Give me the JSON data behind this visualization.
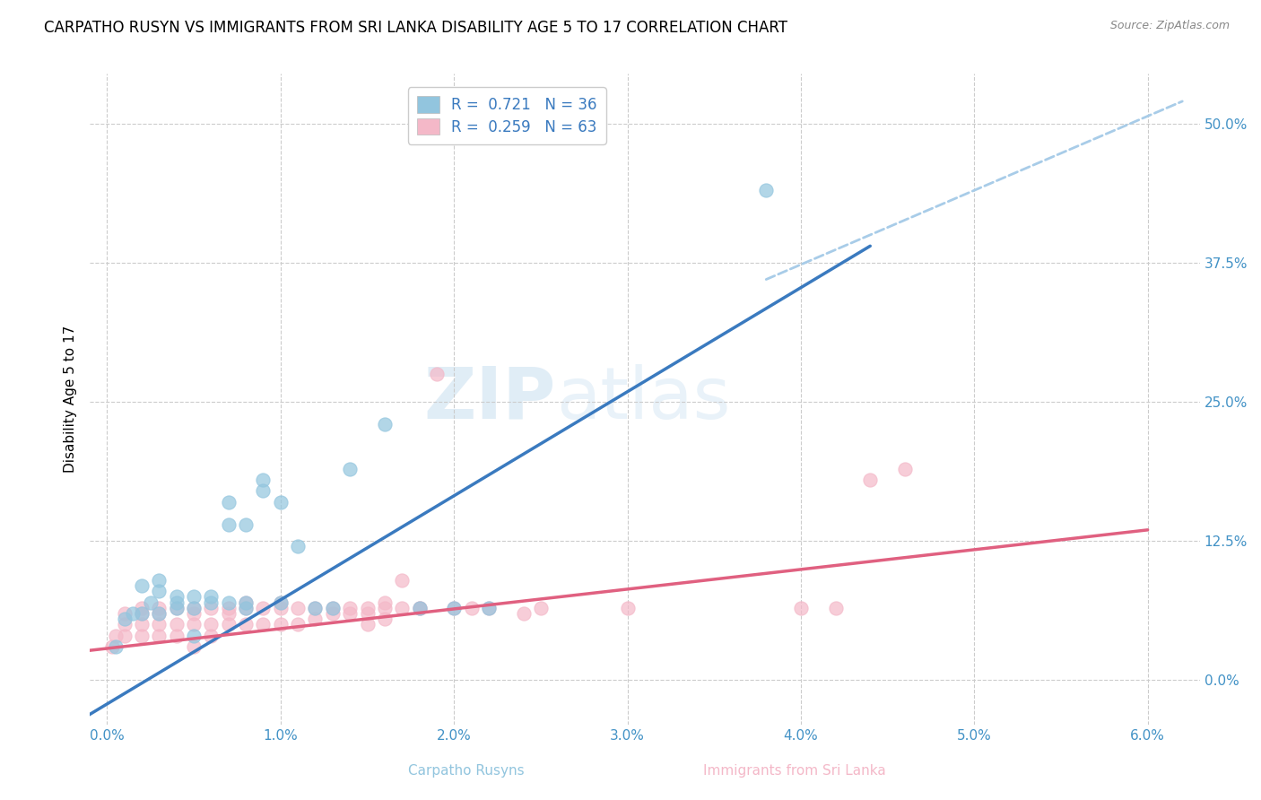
{
  "title": "CARPATHO RUSYN VS IMMIGRANTS FROM SRI LANKA DISABILITY AGE 5 TO 17 CORRELATION CHART",
  "source": "Source: ZipAtlas.com",
  "xlabel_left": "Carpatho Rusyns",
  "xlabel_right": "Immigrants from Sri Lanka",
  "ylabel": "Disability Age 5 to 17",
  "blue_color": "#92c5de",
  "pink_color": "#f4b8c8",
  "blue_line_color": "#3a7abf",
  "pink_line_color": "#e06080",
  "dashed_color": "#a8cce8",
  "legend_r1_val": "0.721",
  "legend_n1_val": "36",
  "legend_r2_val": "0.259",
  "legend_n2_val": "63",
  "blue_scatter_x": [
    0.0005,
    0.001,
    0.0015,
    0.002,
    0.002,
    0.0025,
    0.003,
    0.003,
    0.003,
    0.004,
    0.004,
    0.004,
    0.005,
    0.005,
    0.005,
    0.006,
    0.006,
    0.007,
    0.007,
    0.007,
    0.008,
    0.008,
    0.008,
    0.009,
    0.009,
    0.01,
    0.01,
    0.011,
    0.012,
    0.013,
    0.014,
    0.016,
    0.018,
    0.02,
    0.022,
    0.038
  ],
  "blue_scatter_y": [
    0.03,
    0.055,
    0.06,
    0.06,
    0.085,
    0.07,
    0.06,
    0.08,
    0.09,
    0.065,
    0.07,
    0.075,
    0.04,
    0.065,
    0.075,
    0.07,
    0.075,
    0.07,
    0.14,
    0.16,
    0.065,
    0.07,
    0.14,
    0.17,
    0.18,
    0.07,
    0.16,
    0.12,
    0.065,
    0.065,
    0.19,
    0.23,
    0.065,
    0.065,
    0.065,
    0.44
  ],
  "pink_scatter_x": [
    0.0003,
    0.0005,
    0.001,
    0.001,
    0.001,
    0.002,
    0.002,
    0.002,
    0.002,
    0.003,
    0.003,
    0.003,
    0.003,
    0.004,
    0.004,
    0.004,
    0.005,
    0.005,
    0.005,
    0.005,
    0.006,
    0.006,
    0.006,
    0.007,
    0.007,
    0.007,
    0.008,
    0.008,
    0.008,
    0.009,
    0.009,
    0.01,
    0.01,
    0.01,
    0.011,
    0.011,
    0.012,
    0.012,
    0.013,
    0.013,
    0.014,
    0.014,
    0.015,
    0.015,
    0.015,
    0.016,
    0.016,
    0.016,
    0.017,
    0.017,
    0.018,
    0.018,
    0.019,
    0.02,
    0.021,
    0.022,
    0.024,
    0.025,
    0.03,
    0.04,
    0.042,
    0.044,
    0.046
  ],
  "pink_scatter_y": [
    0.03,
    0.04,
    0.04,
    0.05,
    0.06,
    0.04,
    0.05,
    0.06,
    0.065,
    0.04,
    0.05,
    0.06,
    0.065,
    0.04,
    0.05,
    0.065,
    0.03,
    0.05,
    0.06,
    0.065,
    0.04,
    0.05,
    0.065,
    0.05,
    0.06,
    0.065,
    0.05,
    0.065,
    0.07,
    0.05,
    0.065,
    0.05,
    0.065,
    0.07,
    0.05,
    0.065,
    0.055,
    0.065,
    0.06,
    0.065,
    0.06,
    0.065,
    0.05,
    0.06,
    0.065,
    0.055,
    0.065,
    0.07,
    0.065,
    0.09,
    0.065,
    0.065,
    0.275,
    0.065,
    0.065,
    0.065,
    0.06,
    0.065,
    0.065,
    0.065,
    0.065,
    0.18,
    0.19
  ],
  "blue_line_x": [
    -0.002,
    0.044
  ],
  "blue_line_y": [
    -0.04,
    0.39
  ],
  "pink_line_x": [
    -0.002,
    0.06
  ],
  "pink_line_y": [
    0.025,
    0.135
  ],
  "dashed_line_x": [
    0.038,
    0.062
  ],
  "dashed_line_y": [
    0.36,
    0.52
  ],
  "xlim": [
    -0.001,
    0.063
  ],
  "ylim": [
    -0.04,
    0.545
  ],
  "yticks": [
    0.0,
    0.125,
    0.25,
    0.375,
    0.5
  ],
  "ytick_labels": [
    "0.0%",
    "12.5%",
    "25.0%",
    "37.5%",
    "50.0%"
  ],
  "xticks": [
    0.0,
    0.01,
    0.02,
    0.03,
    0.04,
    0.05,
    0.06
  ],
  "xtick_labels": [
    "0.0%",
    "1.0%",
    "2.0%",
    "3.0%",
    "4.0%",
    "5.0%",
    "6.0%"
  ],
  "tick_color": "#4292c6",
  "grid_color": "#cccccc",
  "background_color": "#ffffff",
  "watermark_zip": "ZIP",
  "watermark_atlas": "atlas",
  "title_fontsize": 12,
  "axis_label_fontsize": 11,
  "tick_fontsize": 11
}
